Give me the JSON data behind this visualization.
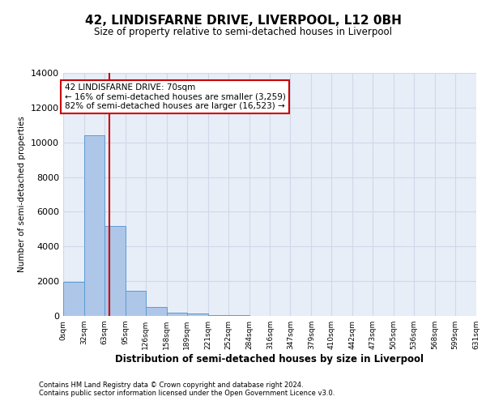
{
  "title": "42, LINDISFARNE DRIVE, LIVERPOOL, L12 0BH",
  "subtitle": "Size of property relative to semi-detached houses in Liverpool",
  "xlabel": "Distribution of semi-detached houses by size in Liverpool",
  "ylabel": "Number of semi-detached properties",
  "footnote1": "Contains HM Land Registry data © Crown copyright and database right 2024.",
  "footnote2": "Contains public sector information licensed under the Open Government Licence v3.0.",
  "annotation_title": "42 LINDISFARNE DRIVE: 70sqm",
  "annotation_line1": "← 16% of semi-detached houses are smaller (3,259)",
  "annotation_line2": "82% of semi-detached houses are larger (16,523) →",
  "property_size": 70,
  "bar_edges": [
    0,
    32,
    63,
    95,
    126,
    158,
    189,
    221,
    252,
    284,
    316,
    347,
    379,
    410,
    442,
    473,
    505,
    536,
    568,
    599,
    631
  ],
  "bar_heights": [
    1950,
    10400,
    5200,
    1450,
    500,
    200,
    120,
    70,
    50,
    0,
    0,
    0,
    0,
    0,
    0,
    0,
    0,
    0,
    0,
    0
  ],
  "bar_color": "#aec6e8",
  "bar_edge_color": "#5b9bd5",
  "red_line_color": "#cc0000",
  "annotation_box_color": "#cc0000",
  "grid_color": "#d0d8e8",
  "background_color": "#e8eef8",
  "ylim": [
    0,
    14000
  ],
  "yticks": [
    0,
    2000,
    4000,
    6000,
    8000,
    10000,
    12000,
    14000
  ]
}
